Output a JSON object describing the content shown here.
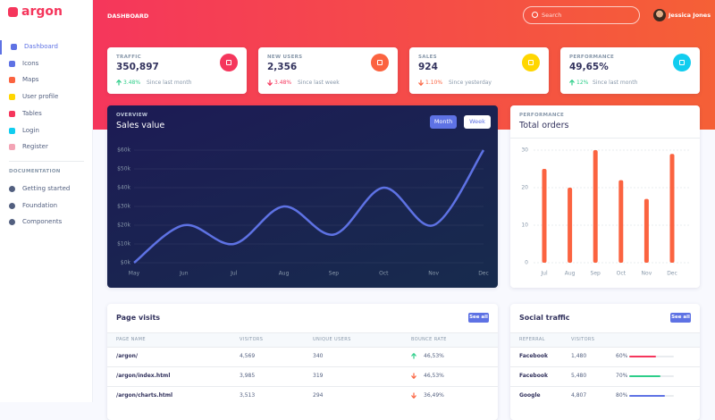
{
  "sidebar": {
    "brand": "argon",
    "nav": [
      "Dashboard",
      "Icons",
      "Maps",
      "User profile",
      "Tables",
      "Login",
      "Register"
    ],
    "nav_colors": [
      "#5e72e4",
      "#5e72e4",
      "#fb6340",
      "#ffd600",
      "#f5365c",
      "#11cdef",
      "#f3a4b5"
    ],
    "section": "DOCUMENTATION",
    "docs": [
      "Getting started",
      "Foundation",
      "Components"
    ]
  },
  "header": {
    "title": "DASHBOARD",
    "search_placeholder": "Search",
    "user": "Jessica Jones"
  },
  "stats": [
    {
      "label": "TRAFFIC",
      "value": "350,897",
      "change": "3.48%",
      "direction": "up",
      "change_color": "#2dce89",
      "note": "Since last month",
      "icon_color": "#f5365c"
    },
    {
      "label": "NEW USERS",
      "value": "2,356",
      "change": "3.48%",
      "direction": "down",
      "change_color": "#f5365c",
      "note": "Since last week",
      "icon_color": "#fb6340"
    },
    {
      "label": "SALES",
      "value": "924",
      "change": "1.10%",
      "direction": "down",
      "change_color": "#fb6340",
      "note": "Since yesterday",
      "icon_color": "#ffd600"
    },
    {
      "label": "PERFORMANCE",
      "value": "49,65%",
      "change": "12%",
      "direction": "up",
      "change_color": "#2dce89",
      "note": "Since last month",
      "icon_color": "#11cdef"
    }
  ],
  "chart_data": [
    {
      "type": "line",
      "overline": "OVERVIEW",
      "title": "Sales value",
      "toggles": [
        "Month",
        "Week"
      ],
      "categories": [
        "May",
        "Jun",
        "Jul",
        "Aug",
        "Sep",
        "Oct",
        "Nov",
        "Dec"
      ],
      "values": [
        0,
        20,
        10,
        30,
        15,
        40,
        20,
        60
      ],
      "color": "#5e72e4",
      "ylim": [
        0,
        60
      ],
      "yticks": [
        {
          "value": 0,
          "label": "$0k"
        },
        {
          "value": 10,
          "label": "$10k"
        },
        {
          "value": 20,
          "label": "$20k"
        },
        {
          "value": 30,
          "label": "$30k"
        },
        {
          "value": 40,
          "label": "$40k"
        },
        {
          "value": 50,
          "label": "$50k"
        },
        {
          "value": 60,
          "label": "$60k"
        }
      ],
      "grid": true
    },
    {
      "type": "bar",
      "overline": "PERFORMANCE",
      "title": "Total orders",
      "categories": [
        "Jul",
        "Aug",
        "Sep",
        "Oct",
        "Nov",
        "Dec"
      ],
      "values": [
        25,
        20,
        30,
        22,
        17,
        29
      ],
      "color": "#fb6340",
      "ylim": [
        0,
        30
      ],
      "yticks": [
        0,
        10,
        20,
        30
      ],
      "grid": true
    }
  ],
  "page_visits": {
    "title": "Page visits",
    "button": "See all",
    "columns": [
      "PAGE NAME",
      "VISITORS",
      "UNIQUE USERS",
      "BOUNCE RATE"
    ],
    "rows": [
      {
        "page": "/argon/",
        "visitors": "4,569",
        "unique": "340",
        "bounce": "46,53%",
        "direction": "up"
      },
      {
        "page": "/argon/index.html",
        "visitors": "3,985",
        "unique": "319",
        "bounce": "46,53%",
        "direction": "down"
      },
      {
        "page": "/argon/charts.html",
        "visitors": "3,513",
        "unique": "294",
        "bounce": "36,49%",
        "direction": "down"
      }
    ]
  },
  "social_traffic": {
    "title": "Social traffic",
    "button": "See all",
    "columns": [
      "REFERRAL",
      "VISITORS"
    ],
    "rows": [
      {
        "referral": "Facebook",
        "visitors": "1,480",
        "percent": "60%",
        "color": "#f5365c"
      },
      {
        "referral": "Facebook",
        "visitors": "5,480",
        "percent": "70%",
        "color": "#2dce89"
      },
      {
        "referral": "Google",
        "visitors": "4,807",
        "percent": "80%",
        "color": "#5e72e4"
      }
    ]
  }
}
